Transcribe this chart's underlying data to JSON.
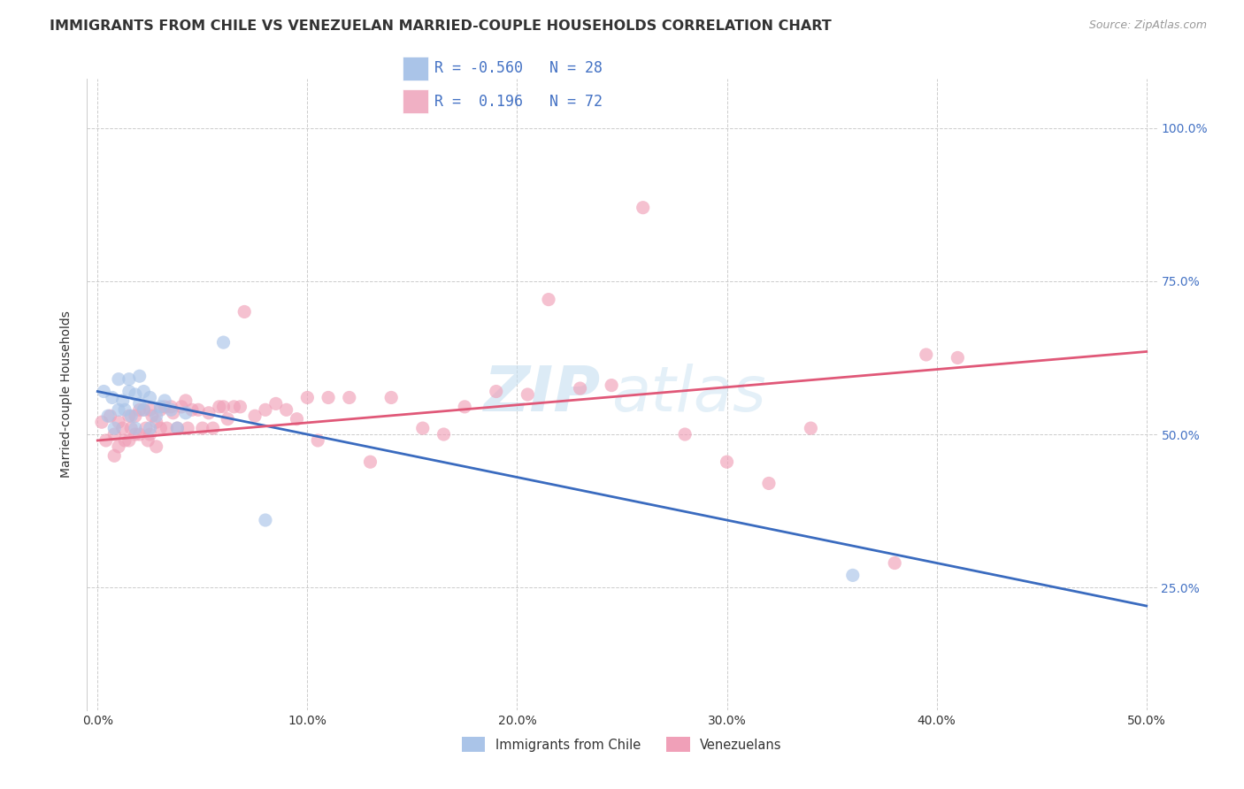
{
  "title": "IMMIGRANTS FROM CHILE VS VENEZUELAN MARRIED-COUPLE HOUSEHOLDS CORRELATION CHART",
  "source": "Source: ZipAtlas.com",
  "ylabel": "Married-couple Households",
  "x_tick_vals": [
    0.0,
    0.1,
    0.2,
    0.3,
    0.4,
    0.5
  ],
  "y_tick_vals": [
    0.25,
    0.5,
    0.75,
    1.0
  ],
  "xlim": [
    -0.005,
    0.505
  ],
  "ylim": [
    0.05,
    1.08
  ],
  "chile_color": "#aac4e8",
  "venezuela_color": "#f0a0b8",
  "chile_line_color": "#3a6bbf",
  "venezuela_line_color": "#e05878",
  "background_color": "#ffffff",
  "grid_color": "#cccccc",
  "watermark_zip": "ZIP",
  "watermark_atlas": "atlas",
  "legend_box_color_chile": "#aac4e8",
  "legend_box_color_venezuela": "#f0b0c4",
  "text_color": "#333333",
  "right_axis_color": "#4472c4",
  "legend_text_color": "#4472c4",
  "chile_r": "-0.560",
  "chile_n": "28",
  "ven_r": "0.196",
  "ven_n": "72",
  "chile_line_x0": 0.0,
  "chile_line_y0": 0.57,
  "chile_line_x1": 0.5,
  "chile_line_y1": 0.22,
  "ven_line_x0": 0.0,
  "ven_line_y0": 0.49,
  "ven_line_x1": 0.5,
  "ven_line_y1": 0.635,
  "chile_scatter_x": [
    0.003,
    0.005,
    0.007,
    0.008,
    0.01,
    0.01,
    0.012,
    0.013,
    0.015,
    0.015,
    0.016,
    0.018,
    0.018,
    0.02,
    0.02,
    0.022,
    0.022,
    0.025,
    0.025,
    0.028,
    0.03,
    0.032,
    0.035,
    0.038,
    0.042,
    0.06,
    0.08,
    0.36
  ],
  "chile_scatter_y": [
    0.57,
    0.53,
    0.56,
    0.51,
    0.59,
    0.54,
    0.555,
    0.54,
    0.59,
    0.57,
    0.53,
    0.565,
    0.51,
    0.595,
    0.55,
    0.57,
    0.54,
    0.56,
    0.51,
    0.53,
    0.545,
    0.555,
    0.54,
    0.51,
    0.535,
    0.65,
    0.36,
    0.27
  ],
  "ven_scatter_x": [
    0.002,
    0.004,
    0.006,
    0.008,
    0.008,
    0.01,
    0.01,
    0.012,
    0.013,
    0.015,
    0.015,
    0.016,
    0.018,
    0.018,
    0.02,
    0.02,
    0.022,
    0.023,
    0.024,
    0.025,
    0.025,
    0.026,
    0.028,
    0.028,
    0.03,
    0.03,
    0.032,
    0.033,
    0.035,
    0.036,
    0.038,
    0.04,
    0.042,
    0.043,
    0.045,
    0.048,
    0.05,
    0.053,
    0.055,
    0.058,
    0.06,
    0.062,
    0.065,
    0.068,
    0.07,
    0.075,
    0.08,
    0.085,
    0.09,
    0.095,
    0.1,
    0.105,
    0.11,
    0.12,
    0.13,
    0.14,
    0.155,
    0.165,
    0.175,
    0.19,
    0.205,
    0.215,
    0.23,
    0.245,
    0.26,
    0.28,
    0.3,
    0.32,
    0.34,
    0.38,
    0.395,
    0.41
  ],
  "ven_scatter_y": [
    0.52,
    0.49,
    0.53,
    0.5,
    0.465,
    0.52,
    0.48,
    0.51,
    0.49,
    0.53,
    0.49,
    0.51,
    0.53,
    0.5,
    0.54,
    0.5,
    0.54,
    0.51,
    0.49,
    0.54,
    0.5,
    0.53,
    0.52,
    0.48,
    0.54,
    0.51,
    0.545,
    0.51,
    0.545,
    0.535,
    0.51,
    0.545,
    0.555,
    0.51,
    0.54,
    0.54,
    0.51,
    0.535,
    0.51,
    0.545,
    0.545,
    0.525,
    0.545,
    0.545,
    0.7,
    0.53,
    0.54,
    0.55,
    0.54,
    0.525,
    0.56,
    0.49,
    0.56,
    0.56,
    0.455,
    0.56,
    0.51,
    0.5,
    0.545,
    0.57,
    0.565,
    0.72,
    0.575,
    0.58,
    0.87,
    0.5,
    0.455,
    0.42,
    0.51,
    0.29,
    0.63,
    0.625
  ],
  "scatter_size": 120,
  "scatter_alpha": 0.65
}
